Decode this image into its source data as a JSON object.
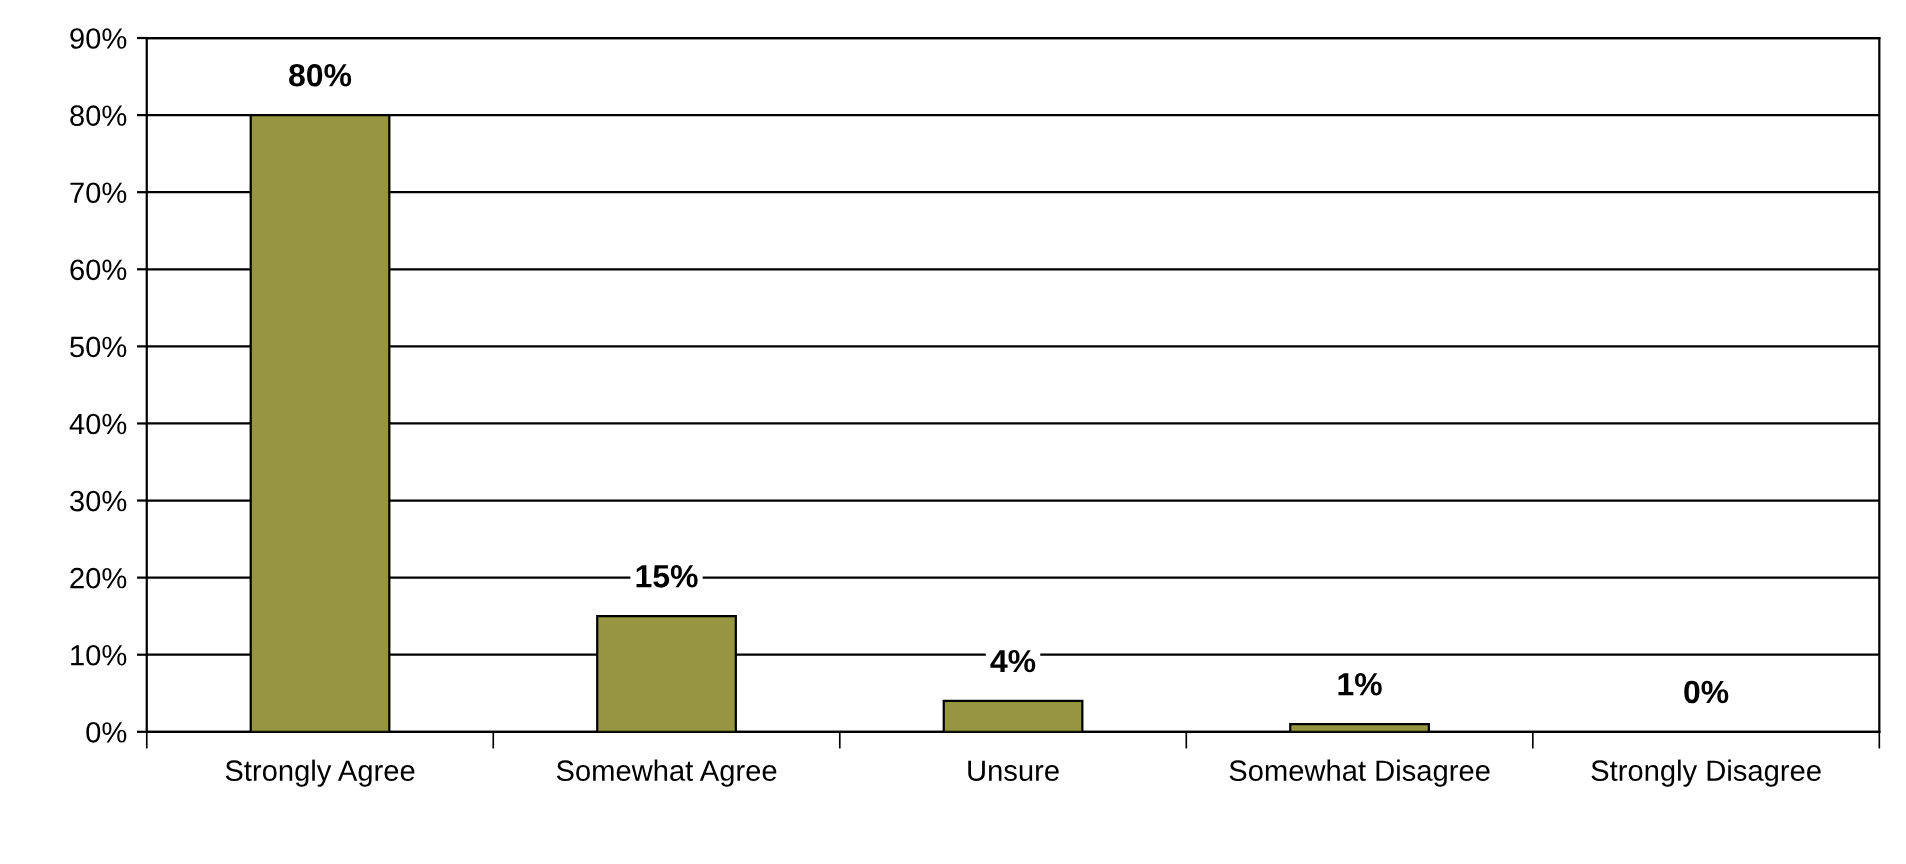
{
  "chart_data": {
    "type": "bar",
    "categories": [
      "Strongly Agree",
      "Somewhat Agree",
      "Unsure",
      "Somewhat Disagree",
      "Strongly Disagree"
    ],
    "values": [
      80,
      15,
      4,
      1,
      0
    ],
    "value_labels": [
      "80%",
      "15%",
      "4%",
      "1%",
      "0%"
    ],
    "color": "#969640",
    "ylim": [
      0,
      90
    ],
    "yticks": [
      {
        "value": 0,
        "label": "0%"
      },
      {
        "value": 10,
        "label": "10%"
      },
      {
        "value": 20,
        "label": "20%"
      },
      {
        "value": 30,
        "label": "30%"
      },
      {
        "value": 40,
        "label": "40%"
      },
      {
        "value": 50,
        "label": "50%"
      },
      {
        "value": 60,
        "label": "60%"
      },
      {
        "value": 70,
        "label": "70%"
      },
      {
        "value": 80,
        "label": "80%"
      },
      {
        "value": 90,
        "label": "90%"
      }
    ],
    "grid": "y",
    "legend": false
  }
}
